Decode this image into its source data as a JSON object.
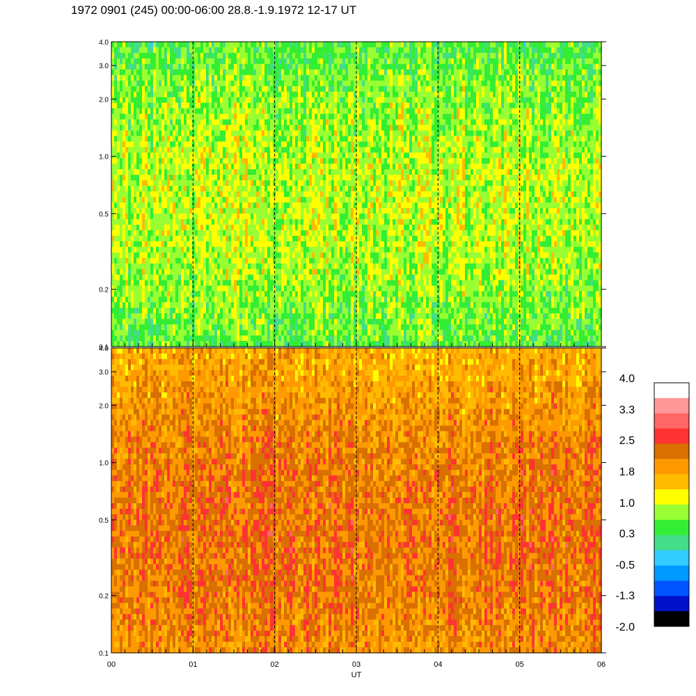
{
  "title": "1972 0901 (245) 00:00-06:00 28.8.-1.9.1972  12-17 UT",
  "chart_data": [
    {
      "type": "heatmap",
      "panel": "top",
      "x": {
        "label": "",
        "ticks": [
          "00",
          "01",
          "02",
          "03",
          "04",
          "05",
          "06"
        ],
        "range": [
          0,
          6
        ],
        "unit": "UT hours"
      },
      "y": {
        "scale": "log",
        "range": [
          0.1,
          4.0
        ],
        "ticks": [
          0.1,
          0.2,
          0.5,
          1.0,
          2.0,
          3.0,
          4.0
        ],
        "tick_labels": [
          "0.1",
          "0.2",
          "0.5",
          "1.0",
          "2.0",
          "3.0",
          "4.0"
        ]
      },
      "dominant_level_range": [
        0.0,
        1.4
      ],
      "vertical_dashed_lines_at": [
        1,
        2,
        3,
        4,
        5
      ]
    },
    {
      "type": "heatmap",
      "panel": "bottom",
      "x": {
        "label": "UT",
        "ticks": [
          "00",
          "01",
          "02",
          "03",
          "04",
          "05",
          "06"
        ],
        "range": [
          0,
          6
        ],
        "unit": "UT hours"
      },
      "y": {
        "scale": "log",
        "range": [
          0.1,
          4.0
        ],
        "ticks": [
          0.1,
          0.2,
          0.5,
          1.0,
          2.0,
          3.0,
          4.0
        ],
        "tick_labels": [
          "0.1",
          "0.2",
          "0.5",
          "1.0",
          "2.0",
          "3.0",
          "4.0"
        ]
      },
      "dominant_level_range": [
        1.0,
        2.6
      ],
      "vertical_dashed_lines_at": [
        1,
        2,
        3,
        4,
        5
      ]
    }
  ],
  "colorbar": {
    "labels": [
      "4.0",
      "3.3",
      "2.5",
      "1.8",
      "1.0",
      "0.3",
      "-0.5",
      "-1.3",
      "-2.0"
    ],
    "levels": [
      4.0,
      3.3,
      2.5,
      1.8,
      1.0,
      0.3,
      -0.5,
      -1.3,
      -2.0
    ],
    "colors_top_to_bottom": [
      "#ffffff",
      "#ff9999",
      "#ff6666",
      "#ff3333",
      "#d97000",
      "#ff9900",
      "#ffbb00",
      "#ffff00",
      "#99ff33",
      "#33ee33",
      "#44dd88",
      "#33ccff",
      "#0099ff",
      "#0055ff",
      "#0011cc",
      "#000000"
    ]
  }
}
